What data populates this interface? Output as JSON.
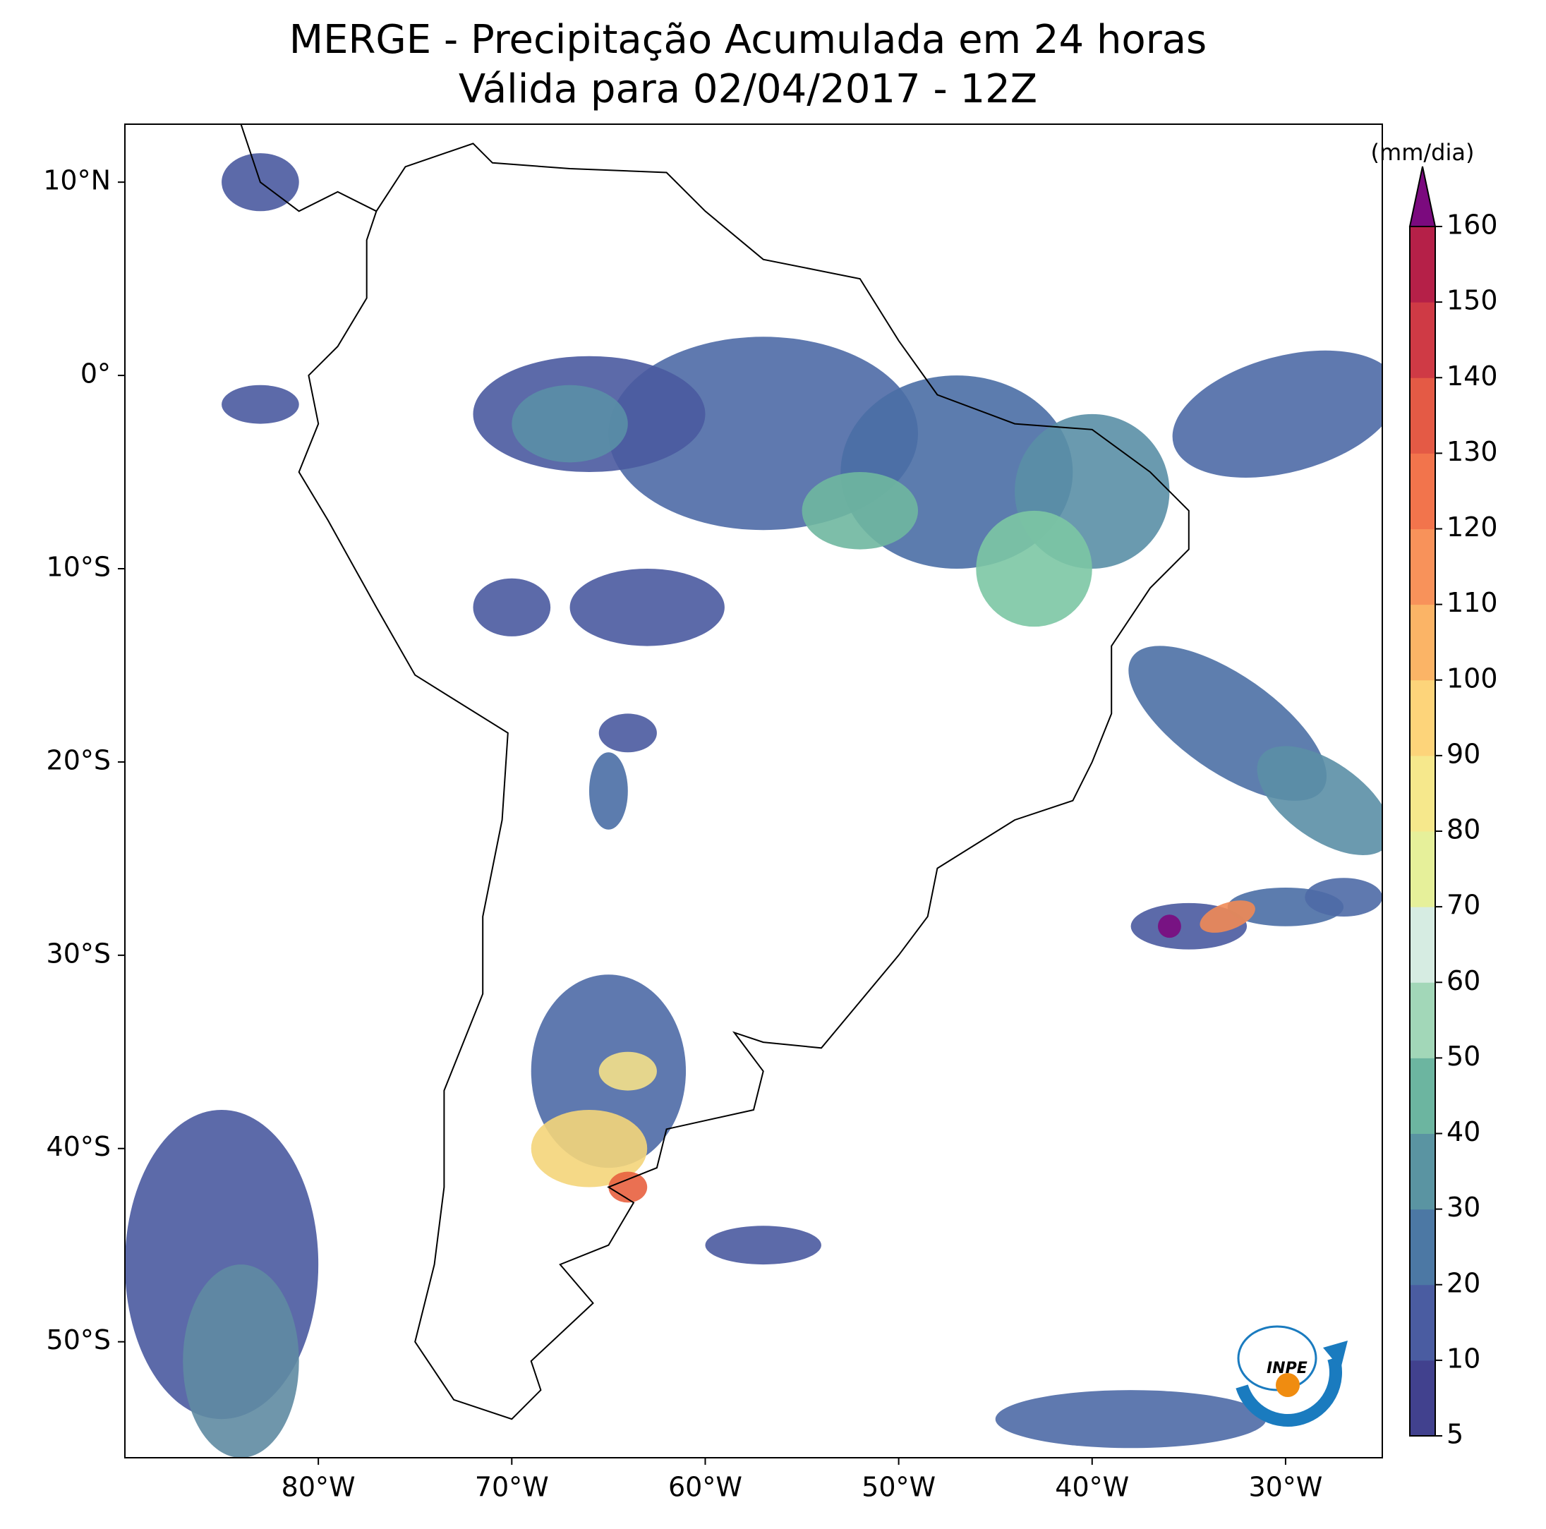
{
  "chart_data": {
    "type": "map",
    "title": "MERGE - Precipitação Acumulada em 24 horas",
    "subtitle": "Válida para 02/04/2017 - 12Z",
    "xlim": [
      -90,
      -25
    ],
    "ylim": [
      -56,
      13
    ],
    "xticks": [
      {
        "value": -80,
        "label": "80°W"
      },
      {
        "value": -70,
        "label": "70°W"
      },
      {
        "value": -60,
        "label": "60°W"
      },
      {
        "value": -50,
        "label": "50°W"
      },
      {
        "value": -40,
        "label": "40°W"
      },
      {
        "value": -30,
        "label": "30°W"
      }
    ],
    "yticks": [
      {
        "value": 10,
        "label": "10°N"
      },
      {
        "value": 0,
        "label": "0°"
      },
      {
        "value": -10,
        "label": "10°S"
      },
      {
        "value": -20,
        "label": "20°S"
      },
      {
        "value": -30,
        "label": "30°S"
      },
      {
        "value": -40,
        "label": "40°S"
      },
      {
        "value": -50,
        "label": "50°S"
      }
    ],
    "colorbar": {
      "label": "(mm/dia)",
      "ticks": [
        5,
        10,
        20,
        30,
        40,
        50,
        60,
        70,
        80,
        90,
        100,
        110,
        120,
        130,
        140,
        150,
        160
      ],
      "colors": [
        "#41418e",
        "#4a5ca1",
        "#4c78a4",
        "#5a94a2",
        "#6cb5a0",
        "#a2d7b8",
        "#d6ece2",
        "#e6f09a",
        "#f6e88c",
        "#fdd47a",
        "#fbb466",
        "#f8925a",
        "#f2744c",
        "#e45a45",
        "#cf3a45",
        "#b52048"
      ],
      "extend_color": "#7b0a7e"
    }
  }
}
